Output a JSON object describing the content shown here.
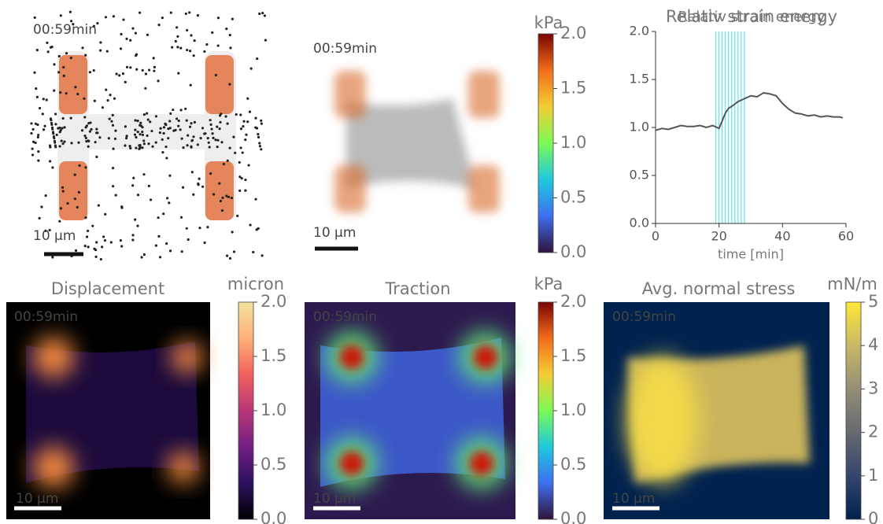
{
  "chart_data": [
    {
      "type": "image",
      "time": "00:59min",
      "scale": "10 µm"
    },
    {
      "type": "image",
      "time": "00:59min",
      "scale": "10 µm",
      "colorbar": {
        "label": "kPa",
        "lim": [
          0,
          2
        ],
        "ticks": [
          {
            "value": 0,
            "label": "0.0"
          },
          {
            "value": 0.5,
            "label": "0.5"
          },
          {
            "value": 1,
            "label": "1.0"
          },
          {
            "value": 1.5,
            "label": "1.5"
          },
          {
            "value": 2,
            "label": "2.0"
          }
        ],
        "colormap": [
          "#30123b",
          "#3e6ff0",
          "#1fc8de",
          "#7bfa55",
          "#f4cd34",
          "#f36d1a",
          "#7a0403"
        ]
      }
    },
    {
      "type": "line",
      "title": "Relativ strain energy",
      "xlabel": "time [min]",
      "color": "#555555",
      "x": [
        0,
        2,
        4,
        6,
        8,
        10,
        12,
        14,
        16,
        18,
        20,
        21,
        22,
        23,
        24,
        26,
        28,
        30,
        32,
        34,
        36,
        38,
        40,
        42,
        44,
        46,
        48,
        50,
        52,
        54,
        56,
        58,
        59
      ],
      "values": [
        0.97,
        0.99,
        0.98,
        1.0,
        1.02,
        1.01,
        1.01,
        1.02,
        1.0,
        1.02,
        0.99,
        1.07,
        1.15,
        1.2,
        1.22,
        1.27,
        1.3,
        1.33,
        1.32,
        1.36,
        1.35,
        1.33,
        1.25,
        1.19,
        1.15,
        1.14,
        1.12,
        1.13,
        1.11,
        1.12,
        1.11,
        1.11,
        1.1
      ],
      "vlines": [
        19,
        20,
        21,
        22,
        23,
        24,
        25,
        26,
        27,
        28
      ],
      "vline_color": "#40e0e0",
      "xlim": [
        0,
        60
      ],
      "xticks": [
        0,
        20,
        40,
        60
      ],
      "ylim": [
        0,
        2
      ],
      "yticks": [
        {
          "value": 0,
          "label": "0.0"
        },
        {
          "value": 0.5,
          "label": "0.5"
        },
        {
          "value": 1,
          "label": "1.0"
        },
        {
          "value": 1.5,
          "label": "1.5"
        },
        {
          "value": 2,
          "label": "2.0"
        }
      ]
    },
    {
      "type": "image",
      "title": "Displacement",
      "time": "00:59min",
      "scale": "10 µm",
      "colorbar": {
        "label": "micron",
        "lim": [
          0,
          2
        ],
        "ticks": [
          {
            "value": 0,
            "label": "0.0"
          },
          {
            "value": 0.5,
            "label": "0.5"
          },
          {
            "value": 1,
            "label": "1.0"
          },
          {
            "value": 1.5,
            "label": "1.5"
          },
          {
            "value": 2,
            "label": "2.0"
          }
        ],
        "colormap": [
          "#000004",
          "#2c115f",
          "#721f81",
          "#b73779",
          "#f1605d",
          "#feb078",
          "#f3e3a0"
        ]
      }
    },
    {
      "type": "image",
      "title": "Traction",
      "time": "00:59min",
      "scale": "10 µm",
      "colorbar": {
        "label": "kPa",
        "lim": [
          0,
          2
        ],
        "ticks": [
          {
            "value": 0,
            "label": "0.0"
          },
          {
            "value": 0.5,
            "label": "0.5"
          },
          {
            "value": 1,
            "label": "1.0"
          },
          {
            "value": 1.5,
            "label": "1.5"
          },
          {
            "value": 2,
            "label": "2.0"
          }
        ],
        "colormap": [
          "#30123b",
          "#3e6ff0",
          "#1fc8de",
          "#7bfa55",
          "#f4cd34",
          "#f36d1a",
          "#7a0403"
        ]
      }
    },
    {
      "type": "image",
      "title": "Avg. normal stress",
      "time": "00:59min",
      "scale": "10 µm",
      "colorbar": {
        "label": "mN/m",
        "lim": [
          0,
          5
        ],
        "ticks": [
          0,
          1,
          2,
          3,
          4,
          5
        ],
        "colormap": [
          "#00224e",
          "#35456c",
          "#666970",
          "#948e77",
          "#c8b866",
          "#fee838"
        ]
      }
    }
  ]
}
